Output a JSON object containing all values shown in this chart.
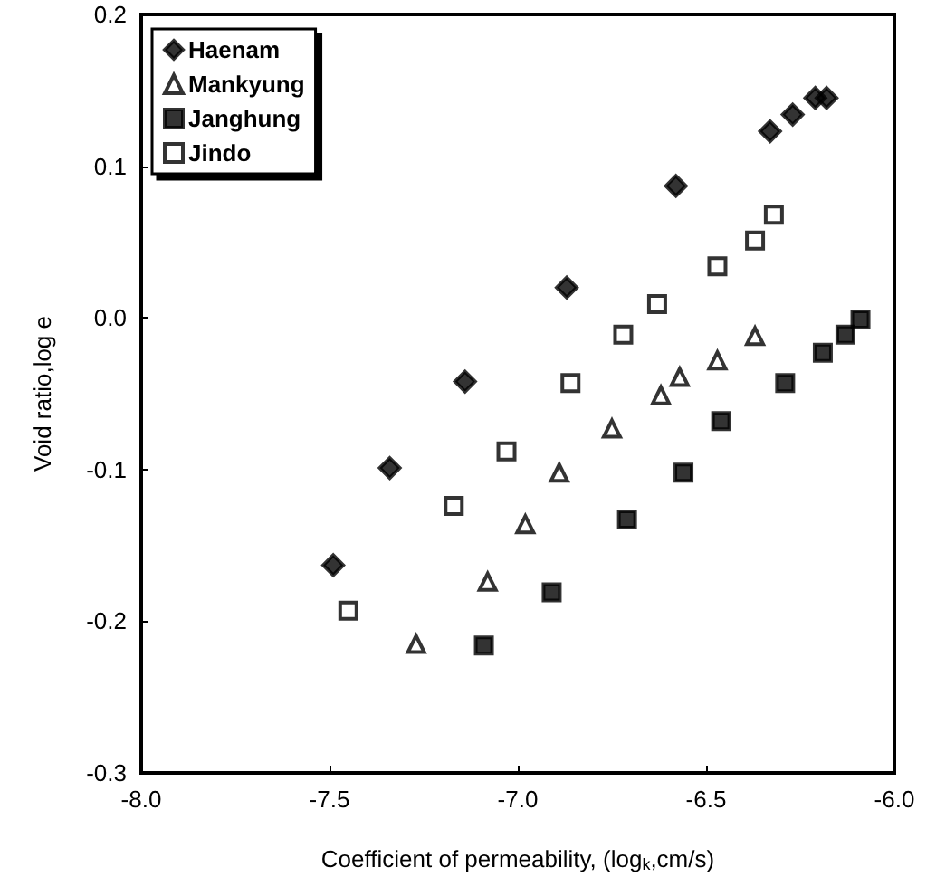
{
  "chart_data": {
    "type": "scatter",
    "xlabel": "Coefficient of permeability, (log$_{k}$,cm/s)",
    "ylabel": "Void ratio,log e",
    "xlim": [
      -8.0,
      -6.0
    ],
    "xticks": [
      {
        "value": -8,
        "label": "-8.0"
      },
      -7.5,
      {
        "value": -7,
        "label": "-7.0"
      },
      -6.5,
      {
        "value": -6,
        "label": "-6.0"
      }
    ],
    "ylim": [
      -0.3,
      0.2
    ],
    "yticks": [
      -0.3,
      -0.2,
      -0.1,
      {
        "value": 0,
        "label": "0.0"
      },
      0.1,
      0.2
    ],
    "grid": false,
    "legend": "top left",
    "series": [
      {
        "name": "Haenam",
        "color": "#000000",
        "marker": "diamond",
        "x": [
          -7.49,
          -7.34,
          -7.14,
          -6.87,
          -6.58,
          -6.33,
          -6.27,
          -6.21,
          -6.18
        ],
        "values": [
          -0.163,
          -0.099,
          -0.042,
          0.02,
          0.087,
          0.123,
          0.134,
          0.145,
          0.145
        ]
      },
      {
        "name": "Mankyung",
        "color": "#ffffff",
        "marker": "triangle",
        "x": [
          -7.27,
          -7.08,
          -6.98,
          -6.89,
          -6.75,
          -6.62,
          -6.57,
          -6.47,
          -6.37
        ],
        "values": [
          -0.215,
          -0.174,
          -0.136,
          -0.102,
          -0.073,
          -0.051,
          -0.039,
          -0.028,
          -0.012
        ]
      },
      {
        "name": "Janghung",
        "color": "#000000",
        "marker": "square",
        "x": [
          -7.09,
          -6.91,
          -6.71,
          -6.56,
          -6.46,
          -6.29,
          -6.19,
          -6.13,
          -6.09
        ],
        "values": [
          -0.216,
          -0.181,
          -0.133,
          -0.102,
          -0.068,
          -0.043,
          -0.023,
          -0.011,
          -0.001
        ]
      },
      {
        "name": "Jindo",
        "color": "#ffffff",
        "marker": "square",
        "x": [
          -7.45,
          -7.17,
          -7.03,
          -6.86,
          -6.72,
          -6.63,
          -6.47,
          -6.37,
          -6.32
        ],
        "values": [
          -0.193,
          -0.124,
          -0.088,
          -0.043,
          -0.011,
          0.009,
          0.034,
          0.051,
          0.068
        ]
      }
    ]
  }
}
